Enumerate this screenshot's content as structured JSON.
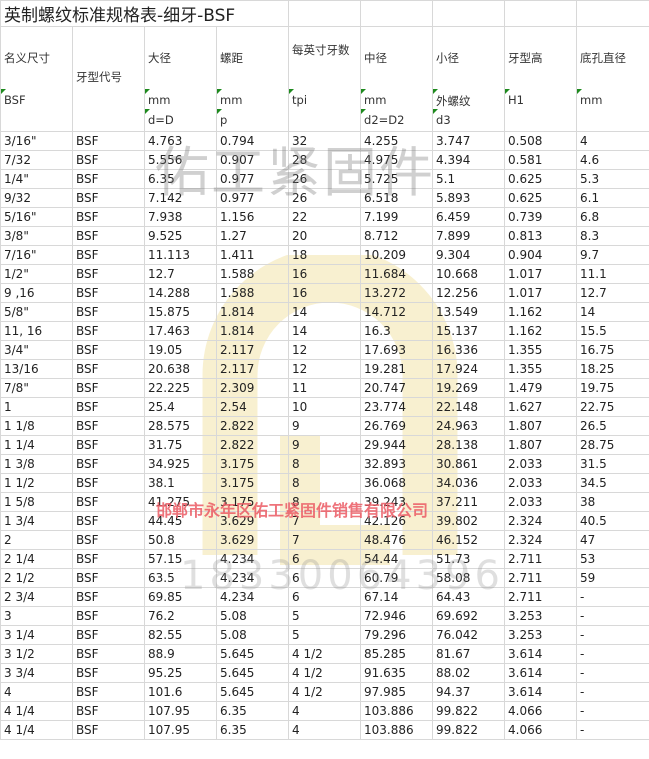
{
  "title": "英制螺纹标准规格表-细牙-BSF",
  "headers": [
    {
      "label": "名义尺寸",
      "unit": "BSF",
      "sub": ""
    },
    {
      "label": "牙型代号",
      "unit": "",
      "sub": ""
    },
    {
      "label": "大径",
      "unit": "mm",
      "sub": "d=D"
    },
    {
      "label": "螺距",
      "unit": "mm",
      "sub": "p"
    },
    {
      "label": "每英寸牙数",
      "unit": "tpi",
      "sub": ""
    },
    {
      "label": "中径",
      "unit": "mm",
      "sub": "d2=D2"
    },
    {
      "label": "小径",
      "unit": "外螺纹",
      "sub": "d3"
    },
    {
      "label": "牙型高",
      "unit": "H1",
      "sub": ""
    },
    {
      "label": "底孔直径",
      "unit": "mm",
      "sub": ""
    }
  ],
  "rows": [
    [
      "3/16\"",
      "BSF",
      "4.763",
      "0.794",
      "32",
      "4.255",
      "3.747",
      "0.508",
      "4"
    ],
    [
      "7/32",
      "BSF",
      "5.556",
      "0.907",
      "28",
      "4.975",
      "4.394",
      "0.581",
      "4.6"
    ],
    [
      "1/4\"",
      "BSF",
      "6.35",
      "0.977",
      "26",
      "5.725",
      "5.1",
      "0.625",
      "5.3"
    ],
    [
      "9/32",
      "BSF",
      "7.142",
      "0.977",
      "26",
      "6.518",
      "5.893",
      "0.625",
      "6.1"
    ],
    [
      "5/16\"",
      "BSF",
      "7.938",
      "1.156",
      "22",
      "7.199",
      "6.459",
      "0.739",
      "6.8"
    ],
    [
      "3/8\"",
      "BSF",
      "9.525",
      "1.27",
      "20",
      "8.712",
      "7.899",
      "0.813",
      "8.3"
    ],
    [
      "7/16\"",
      "BSF",
      "11.113",
      "1.411",
      "18",
      "10.209",
      "9.304",
      "0.904",
      "9.7"
    ],
    [
      "1/2\"",
      "BSF",
      "12.7",
      "1.588",
      "16",
      "11.684",
      "10.668",
      "1.017",
      "11.1"
    ],
    [
      "9 ,16",
      "BSF",
      "14.288",
      "1.588",
      "16",
      "13.272",
      "12.256",
      "1.017",
      "12.7"
    ],
    [
      "5/8\"",
      "BSF",
      "15.875",
      "1.814",
      "14",
      "14.712",
      "13.549",
      "1.162",
      "14"
    ],
    [
      "11, 16",
      "BSF",
      "17.463",
      "1.814",
      "14",
      "16.3",
      "15.137",
      "1.162",
      "15.5"
    ],
    [
      "3/4\"",
      "BSF",
      "19.05",
      "2.117",
      "12",
      "17.693",
      "16.336",
      "1.355",
      "16.75"
    ],
    [
      "13/16",
      "BSF",
      "20.638",
      "2.117",
      "12",
      "19.281",
      "17.924",
      "1.355",
      "18.25"
    ],
    [
      "7/8\"",
      "BSF",
      "22.225",
      "2.309",
      "11",
      "20.747",
      "19.269",
      "1.479",
      "19.75"
    ],
    [
      "1",
      "BSF",
      "25.4",
      "2.54",
      "10",
      "23.774",
      "22.148",
      "1.627",
      "22.75"
    ],
    [
      "1 1/8",
      "BSF",
      "28.575",
      "2.822",
      "9",
      "26.769",
      "24.963",
      "1.807",
      "26.5"
    ],
    [
      "1 1/4",
      "BSF",
      "31.75",
      "2.822",
      "9",
      "29.944",
      "28.138",
      "1.807",
      "28.75"
    ],
    [
      "1 3/8",
      "BSF",
      "34.925",
      "3.175",
      "8",
      "32.893",
      "30.861",
      "2.033",
      "31.5"
    ],
    [
      "1 1/2",
      "BSF",
      "38.1",
      "3.175",
      "8",
      "36.068",
      "34.036",
      "2.033",
      "34.5"
    ],
    [
      "1 5/8",
      "BSF",
      "41.275",
      "3.175",
      "8",
      "39.243",
      "37.211",
      "2.033",
      "38"
    ],
    [
      "1 3/4",
      "BSF",
      "44.45",
      "3.629",
      "7",
      "42.126",
      "39.802",
      "2.324",
      "40.5"
    ],
    [
      "2",
      "BSF",
      "50.8",
      "3.629",
      "7",
      "48.476",
      "46.152",
      "2.324",
      "47"
    ],
    [
      "2 1/4",
      "BSF",
      "57.15",
      "4.234",
      "6",
      "54.44",
      "51.73",
      "2.711",
      "53"
    ],
    [
      "2 1/2",
      "BSF",
      "63.5",
      "4.234",
      "6",
      "60.79",
      "58.08",
      "2.711",
      "59"
    ],
    [
      "2 3/4",
      "BSF",
      "69.85",
      "4.234",
      "6",
      "67.14",
      "64.43",
      "2.711",
      "-"
    ],
    [
      "3",
      "BSF",
      "76.2",
      "5.08",
      "5",
      "72.946",
      "69.692",
      "3.253",
      "-"
    ],
    [
      "3 1/4",
      "BSF",
      "82.55",
      "5.08",
      "5",
      "79.296",
      "76.042",
      "3.253",
      "-"
    ],
    [
      "3 1/2",
      "BSF",
      "88.9",
      "5.645",
      "4 1/2",
      "85.285",
      "81.67",
      "3.614",
      "-"
    ],
    [
      "3 3/4",
      "BSF",
      "95.25",
      "5.645",
      "4 1/2",
      "91.635",
      "88.02",
      "3.614",
      "-"
    ],
    [
      "4",
      "BSF",
      "101.6",
      "5.645",
      "4 1/2",
      "97.985",
      "94.37",
      "3.614",
      "-"
    ],
    [
      "4 1/4",
      "BSF",
      "107.95",
      "6.35",
      "4",
      "103.886",
      "99.822",
      "4.066",
      "-"
    ],
    [
      "4 1/4",
      "BSF",
      "107.95",
      "6.35",
      "4",
      "103.886",
      "99.822",
      "4.066",
      "-"
    ]
  ],
  "watermarks": {
    "brand": "佑工紧固件",
    "company": "邯郸市永年区佑工紧固件销售有限公司",
    "phone": "18330064396",
    "logo_color": "#f3e3a8"
  }
}
